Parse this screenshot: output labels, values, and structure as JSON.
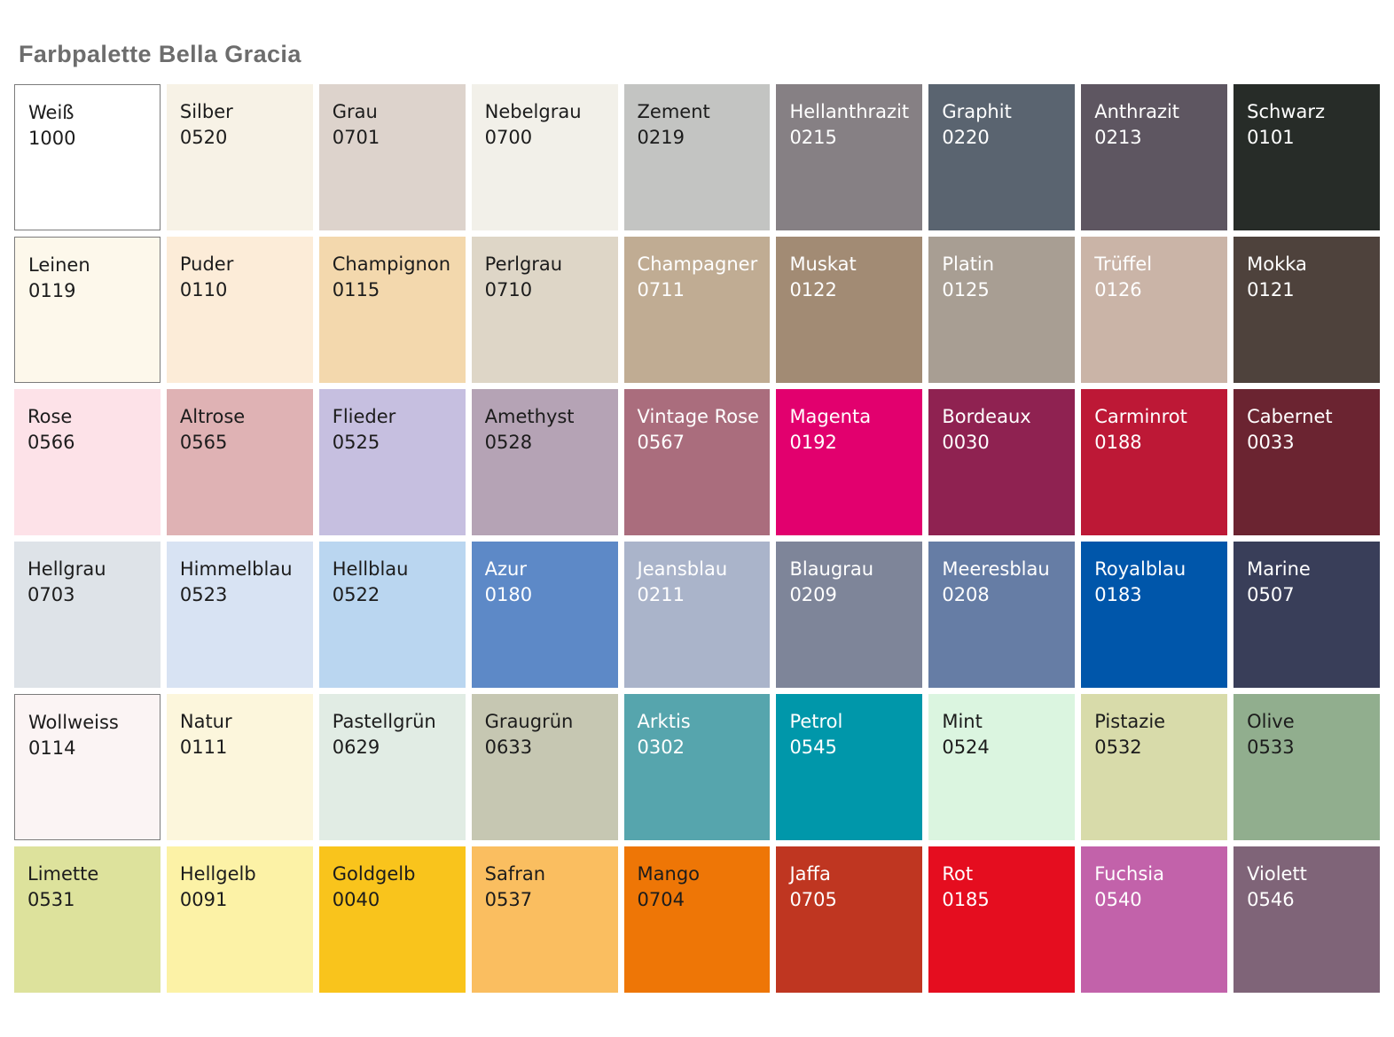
{
  "title": "Farbpalette Bella Gracia",
  "palette": {
    "rows": 6,
    "cols": 9,
    "swatches": [
      {
        "name": "Weiß",
        "code": "1000",
        "color": "#ffffff",
        "text": "dark",
        "border": true
      },
      {
        "name": "Silber",
        "code": "0520",
        "color": "#f7f2e6",
        "text": "dark",
        "border": false
      },
      {
        "name": "Grau",
        "code": "0701",
        "color": "#ddd3cc",
        "text": "dark",
        "border": false
      },
      {
        "name": "Nebelgrau",
        "code": "0700",
        "color": "#f2f0e9",
        "text": "dark",
        "border": false
      },
      {
        "name": "Zement",
        "code": "0219",
        "color": "#c3c4c2",
        "text": "dark",
        "border": false
      },
      {
        "name": "Hellanthrazit",
        "code": "0215",
        "color": "#868084",
        "text": "light",
        "border": false
      },
      {
        "name": "Graphit",
        "code": "0220",
        "color": "#5a6470",
        "text": "light",
        "border": false
      },
      {
        "name": "Anthrazit",
        "code": "0213",
        "color": "#5e5661",
        "text": "light",
        "border": false
      },
      {
        "name": "Schwarz",
        "code": "0101",
        "color": "#272c28",
        "text": "light",
        "border": false
      },
      {
        "name": "Leinen",
        "code": "0119",
        "color": "#fdf8eb",
        "text": "dark",
        "border": true
      },
      {
        "name": "Puder",
        "code": "0110",
        "color": "#fcecd8",
        "text": "dark",
        "border": false
      },
      {
        "name": "Champignon",
        "code": "0115",
        "color": "#f3d8ad",
        "text": "dark",
        "border": false
      },
      {
        "name": "Perlgrau",
        "code": "0710",
        "color": "#ded6c7",
        "text": "dark",
        "border": false
      },
      {
        "name": "Champagner",
        "code": "0711",
        "color": "#c0ac93",
        "text": "light",
        "border": false
      },
      {
        "name": "Muskat",
        "code": "0122",
        "color": "#a28b74",
        "text": "light",
        "border": false
      },
      {
        "name": "Platin",
        "code": "0125",
        "color": "#a89e93",
        "text": "light",
        "border": false
      },
      {
        "name": "Trüffel",
        "code": "0126",
        "color": "#cab4a7",
        "text": "light",
        "border": false
      },
      {
        "name": "Mokka",
        "code": "0121",
        "color": "#4e423c",
        "text": "light",
        "border": false
      },
      {
        "name": "Rose",
        "code": "0566",
        "color": "#fde2e8",
        "text": "dark",
        "border": false
      },
      {
        "name": "Altrose",
        "code": "0565",
        "color": "#dfb2b4",
        "text": "dark",
        "border": false
      },
      {
        "name": "Flieder",
        "code": "0525",
        "color": "#c6bfe0",
        "text": "dark",
        "border": false
      },
      {
        "name": "Amethyst",
        "code": "0528",
        "color": "#b5a3b5",
        "text": "dark",
        "border": false
      },
      {
        "name": "Vintage Rose",
        "code": "0567",
        "color": "#aa6d7d",
        "text": "light",
        "border": false
      },
      {
        "name": "Magenta",
        "code": "0192",
        "color": "#e2006e",
        "text": "light",
        "border": false
      },
      {
        "name": "Bordeaux",
        "code": "0030",
        "color": "#8f2251",
        "text": "light",
        "border": false
      },
      {
        "name": "Carminrot",
        "code": "0188",
        "color": "#bd1836",
        "text": "light",
        "border": false
      },
      {
        "name": "Cabernet",
        "code": "0033",
        "color": "#6b2431",
        "text": "light",
        "border": false
      },
      {
        "name": "Hellgrau",
        "code": "0703",
        "color": "#dee3e8",
        "text": "dark",
        "border": false
      },
      {
        "name": "Himmelblau",
        "code": "0523",
        "color": "#d8e3f3",
        "text": "dark",
        "border": false
      },
      {
        "name": "Hellblau",
        "code": "0522",
        "color": "#bad6f0",
        "text": "dark",
        "border": false
      },
      {
        "name": "Azur",
        "code": "0180",
        "color": "#5d89c7",
        "text": "light",
        "border": false
      },
      {
        "name": "Jeansblau",
        "code": "0211",
        "color": "#aab4ca",
        "text": "light",
        "border": false
      },
      {
        "name": "Blaugrau",
        "code": "0209",
        "color": "#7e8599",
        "text": "light",
        "border": false
      },
      {
        "name": "Meeresblau",
        "code": "0208",
        "color": "#667da5",
        "text": "light",
        "border": false
      },
      {
        "name": "Royalblau",
        "code": "0183",
        "color": "#0056aa",
        "text": "light",
        "border": false
      },
      {
        "name": "Marine",
        "code": "0507",
        "color": "#393e59",
        "text": "light",
        "border": false
      },
      {
        "name": "Wollweiss",
        "code": "0114",
        "color": "#fbf4f4",
        "text": "dark",
        "border": true
      },
      {
        "name": "Natur",
        "code": "0111",
        "color": "#fcf6dc",
        "text": "dark",
        "border": false
      },
      {
        "name": "Pastellgrün",
        "code": "0629",
        "color": "#e1ece4",
        "text": "dark",
        "border": false
      },
      {
        "name": "Graugrün",
        "code": "0633",
        "color": "#c6c7b2",
        "text": "dark",
        "border": false
      },
      {
        "name": "Arktis",
        "code": "0302",
        "color": "#56a5ad",
        "text": "light",
        "border": false
      },
      {
        "name": "Petrol",
        "code": "0545",
        "color": "#0097aa",
        "text": "light",
        "border": false
      },
      {
        "name": "Mint",
        "code": "0524",
        "color": "#dbf5e0",
        "text": "dark",
        "border": false
      },
      {
        "name": "Pistazie",
        "code": "0532",
        "color": "#d8dbaa",
        "text": "dark",
        "border": false
      },
      {
        "name": "Olive",
        "code": "0533",
        "color": "#91ae8e",
        "text": "dark",
        "border": false
      },
      {
        "name": "Limette",
        "code": "0531",
        "color": "#dde29c",
        "text": "dark",
        "border": false
      },
      {
        "name": "Hellgelb",
        "code": "0091",
        "color": "#fcf2a6",
        "text": "dark",
        "border": false
      },
      {
        "name": "Goldgelb",
        "code": "0040",
        "color": "#f9c41c",
        "text": "dark",
        "border": false
      },
      {
        "name": "Safran",
        "code": "0537",
        "color": "#fabe60",
        "text": "dark",
        "border": false
      },
      {
        "name": "Mango",
        "code": "0704",
        "color": "#ee7606",
        "text": "dark",
        "border": false
      },
      {
        "name": "Jaffa",
        "code": "0705",
        "color": "#bf3621",
        "text": "light",
        "border": false
      },
      {
        "name": "Rot",
        "code": "0185",
        "color": "#e50d1f",
        "text": "light",
        "border": false
      },
      {
        "name": "Fuchsia",
        "code": "0540",
        "color": "#c262aa",
        "text": "light",
        "border": false
      },
      {
        "name": "Violett",
        "code": "0546",
        "color": "#7f6478",
        "text": "light",
        "border": false
      }
    ]
  }
}
